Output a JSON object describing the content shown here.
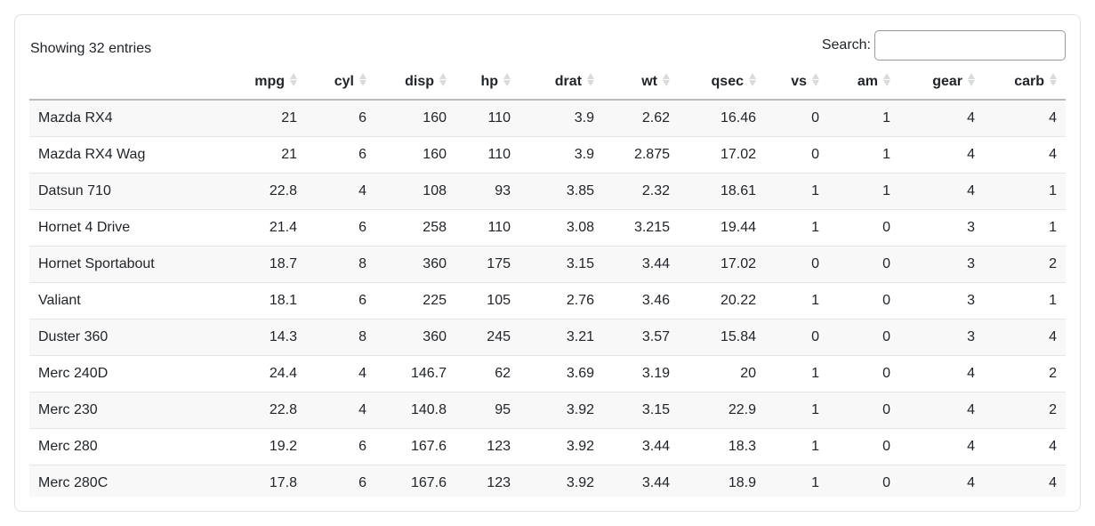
{
  "table": {
    "info": "Showing 32 entries",
    "search": {
      "label": "Search:",
      "value": "",
      "placeholder": ""
    },
    "columns": [
      "mpg",
      "cyl",
      "disp",
      "hp",
      "drat",
      "wt",
      "qsec",
      "vs",
      "am",
      "gear",
      "carb"
    ],
    "rows": [
      {
        "name": "Mazda RX4",
        "values": [
          "21",
          "6",
          "160",
          "110",
          "3.9",
          "2.62",
          "16.46",
          "0",
          "1",
          "4",
          "4"
        ]
      },
      {
        "name": "Mazda RX4 Wag",
        "values": [
          "21",
          "6",
          "160",
          "110",
          "3.9",
          "2.875",
          "17.02",
          "0",
          "1",
          "4",
          "4"
        ]
      },
      {
        "name": "Datsun 710",
        "values": [
          "22.8",
          "4",
          "108",
          "93",
          "3.85",
          "2.32",
          "18.61",
          "1",
          "1",
          "4",
          "1"
        ]
      },
      {
        "name": "Hornet 4 Drive",
        "values": [
          "21.4",
          "6",
          "258",
          "110",
          "3.08",
          "3.215",
          "19.44",
          "1",
          "0",
          "3",
          "1"
        ]
      },
      {
        "name": "Hornet Sportabout",
        "values": [
          "18.7",
          "8",
          "360",
          "175",
          "3.15",
          "3.44",
          "17.02",
          "0",
          "0",
          "3",
          "2"
        ]
      },
      {
        "name": "Valiant",
        "values": [
          "18.1",
          "6",
          "225",
          "105",
          "2.76",
          "3.46",
          "20.22",
          "1",
          "0",
          "3",
          "1"
        ]
      },
      {
        "name": "Duster 360",
        "values": [
          "14.3",
          "8",
          "360",
          "245",
          "3.21",
          "3.57",
          "15.84",
          "0",
          "0",
          "3",
          "4"
        ]
      },
      {
        "name": "Merc 240D",
        "values": [
          "24.4",
          "4",
          "146.7",
          "62",
          "3.69",
          "3.19",
          "20",
          "1",
          "0",
          "4",
          "2"
        ]
      },
      {
        "name": "Merc 230",
        "values": [
          "22.8",
          "4",
          "140.8",
          "95",
          "3.92",
          "3.15",
          "22.9",
          "1",
          "0",
          "4",
          "2"
        ]
      },
      {
        "name": "Merc 280",
        "values": [
          "19.2",
          "6",
          "167.6",
          "123",
          "3.92",
          "3.44",
          "18.3",
          "1",
          "0",
          "4",
          "4"
        ]
      },
      {
        "name": "Merc 280C",
        "values": [
          "17.8",
          "6",
          "167.6",
          "123",
          "3.92",
          "3.44",
          "18.9",
          "1",
          "0",
          "4",
          "4"
        ]
      }
    ]
  },
  "icons": {
    "sort": "sort-both-icon"
  },
  "colors": {
    "card_border": "#dee2e6",
    "header_border": "#b7bbbf",
    "row_border": "#e4e7ea",
    "stripe": "#f8f8f9",
    "sort_icon": "#d8dadc",
    "text": "#212529",
    "input_border": "#95999e"
  }
}
